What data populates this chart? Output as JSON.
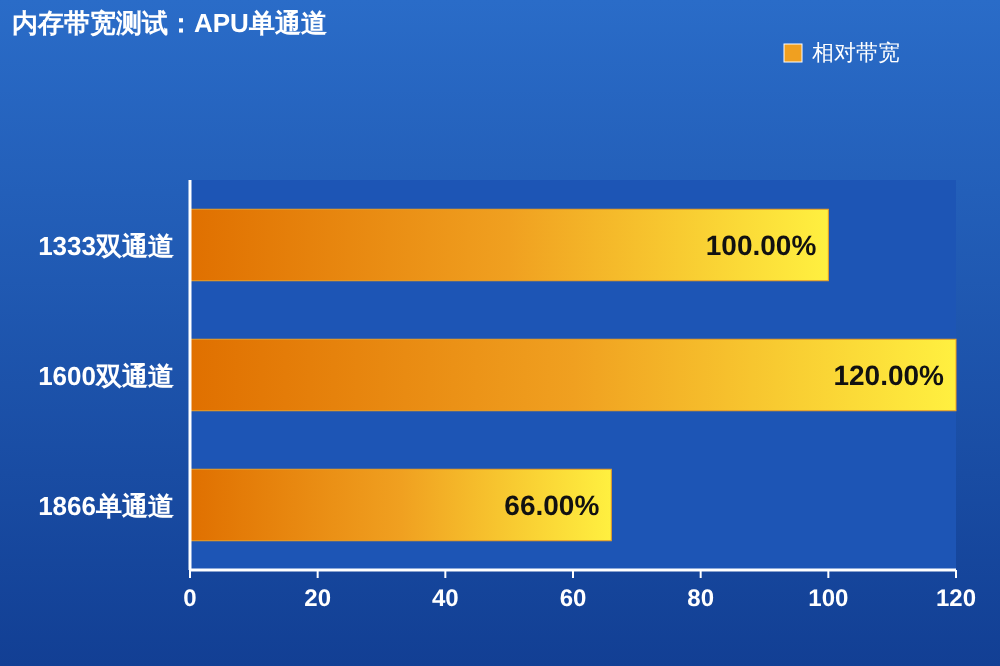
{
  "chart_data": {
    "type": "bar",
    "orientation": "horizontal",
    "title": "内存带宽测试：APU单通道",
    "categories": [
      "1333双通道",
      "1600双通道",
      "1866单通道"
    ],
    "series": [
      {
        "name": "相对带宽",
        "color": "#f0a020",
        "values": [
          100,
          120,
          66
        ]
      }
    ],
    "value_labels": [
      "100.00%",
      "120.00%",
      "66.00%"
    ],
    "xlim": [
      0,
      120
    ],
    "xticks": [
      0,
      20,
      40,
      60,
      80,
      100,
      120
    ],
    "grid": false,
    "legend": "top right"
  }
}
